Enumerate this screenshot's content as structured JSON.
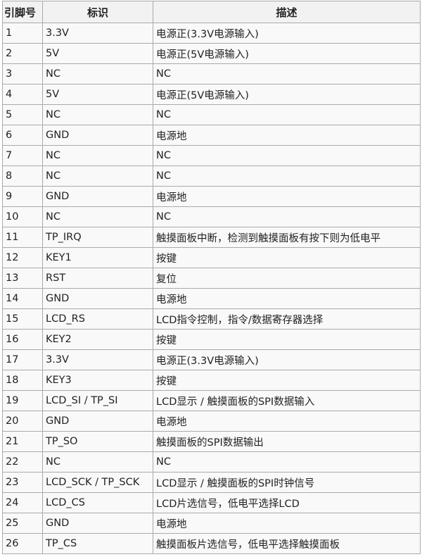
{
  "headers": [
    "引脚号",
    "标识",
    "描述"
  ],
  "rows": [
    [
      "1",
      "3.3V",
      "电源正(3.3V电源输入)"
    ],
    [
      "2",
      "5V",
      "电源正(5V电源输入)"
    ],
    [
      "3",
      "NC",
      "NC"
    ],
    [
      "4",
      "5V",
      "电源正(5V电源输入)"
    ],
    [
      "5",
      "NC",
      "NC"
    ],
    [
      "6",
      "GND",
      "电源地"
    ],
    [
      "7",
      "NC",
      "NC"
    ],
    [
      "8",
      "NC",
      "NC"
    ],
    [
      "9",
      "GND",
      "电源地"
    ],
    [
      "10",
      "NC",
      "NC"
    ],
    [
      "11",
      "TP_IRQ",
      "触摸面板中断，检测到触摸面板有按下则为低电平"
    ],
    [
      "12",
      "KEY1",
      "按键"
    ],
    [
      "13",
      "RST",
      "复位"
    ],
    [
      "14",
      "GND",
      "电源地"
    ],
    [
      "15",
      "LCD_RS",
      "LCD指令控制，指令/数据寄存器选择"
    ],
    [
      "16",
      "KEY2",
      "按键"
    ],
    [
      "17",
      "3.3V",
      "电源正(3.3V电源输入)"
    ],
    [
      "18",
      "KEY3",
      "按键"
    ],
    [
      "19",
      "LCD_SI / TP_SI",
      "LCD显示 / 触摸面板的SPI数据输入"
    ],
    [
      "20",
      "GND",
      "电源地"
    ],
    [
      "21",
      "TP_SO",
      "触摸面板的SPI数据输出"
    ],
    [
      "22",
      "NC",
      "NC"
    ],
    [
      "23",
      "LCD_SCK / TP_SCK",
      "LCD显示 / 触摸面板的SPI时钟信号"
    ],
    [
      "24",
      "LCD_CS",
      "LCD片选信号，低电平选择LCD"
    ],
    [
      "25",
      "GND",
      "电源地"
    ],
    [
      "26",
      "TP_CS",
      "触摸面板片选信号，低电平选择触摸面板"
    ]
  ]
}
